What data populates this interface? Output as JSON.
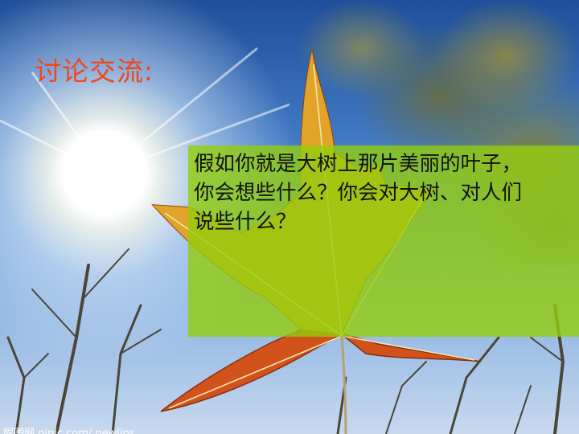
{
  "slide": {
    "title": "讨论交流:",
    "question": "假如你就是大树上那片美丽的叶子，你会想些什么？你会对大树、对人们说些什么？",
    "watermark": "昵图网 nipic.com/ newlips"
  },
  "colors": {
    "title": "#f0461e",
    "panel": "#94cd0c",
    "leaf_red": "#d2521c",
    "leaf_yellow": "#e6c02c"
  }
}
